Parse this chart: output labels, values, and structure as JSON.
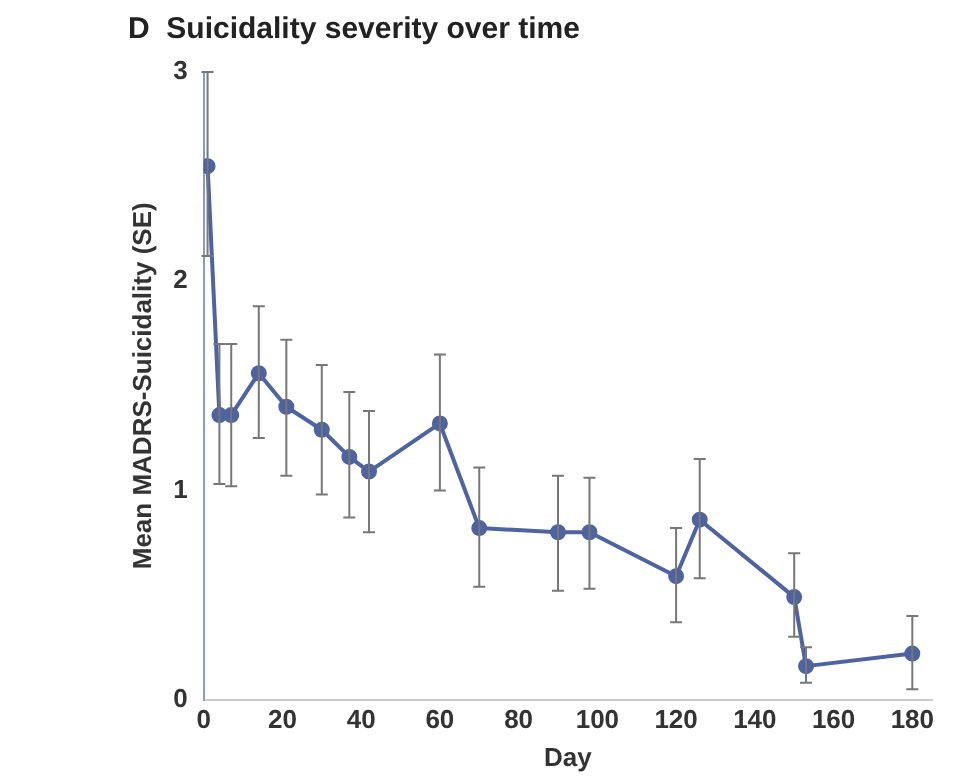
{
  "chart_data": {
    "type": "line",
    "title": "D  Suicidality severity over time",
    "xlabel": "Day",
    "ylabel": "Mean MADRS-Suicidality (SE)",
    "x": [
      1,
      4,
      7,
      14,
      21,
      30,
      37,
      42,
      60,
      70,
      90,
      98,
      120,
      126,
      150,
      153,
      180
    ],
    "series": [
      {
        "color": "#4e63a0",
        "values": [
          2.55,
          1.36,
          1.36,
          1.56,
          1.4,
          1.29,
          1.16,
          1.09,
          1.32,
          0.82,
          0.8,
          0.8,
          0.59,
          0.86,
          0.49,
          0.16,
          0.22
        ],
        "errors": [
          [
            2.12,
            3.0
          ],
          [
            1.03,
            1.7
          ],
          [
            1.02,
            1.7
          ],
          [
            1.25,
            1.88
          ],
          [
            1.07,
            1.72
          ],
          [
            0.98,
            1.6
          ],
          [
            0.87,
            1.47
          ],
          [
            0.8,
            1.38
          ],
          [
            1.0,
            1.65
          ],
          [
            0.54,
            1.11
          ],
          [
            0.52,
            1.07
          ],
          [
            0.53,
            1.06
          ],
          [
            0.37,
            0.82
          ],
          [
            0.58,
            1.15
          ],
          [
            0.3,
            0.7
          ],
          [
            0.08,
            0.25
          ],
          [
            0.05,
            0.4
          ]
        ]
      }
    ],
    "xlim": [
      0,
      185
    ],
    "xticks": [
      0,
      20,
      40,
      60,
      80,
      100,
      120,
      140,
      160,
      180
    ],
    "ylim": [
      0,
      3
    ],
    "yticks": [
      0,
      1,
      2,
      3
    ],
    "grid": false,
    "legend": false,
    "marker": "circle",
    "line_style": "solid"
  }
}
